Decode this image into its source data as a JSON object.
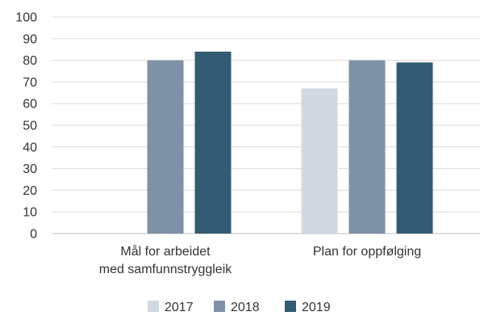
{
  "chart_data": {
    "type": "bar",
    "categories": [
      [
        "Mål for arbeidet",
        "med samfunnstryggleik"
      ],
      [
        "Plan for oppfølging"
      ]
    ],
    "series": [
      {
        "name": "2017",
        "color": "#d1d8e2",
        "values": [
          null,
          67
        ]
      },
      {
        "name": "2018",
        "color": "#7e91a7",
        "values": [
          80,
          80
        ]
      },
      {
        "name": "2019",
        "color": "#335b73",
        "values": [
          84,
          79
        ]
      }
    ],
    "ylim": [
      0,
      100
    ],
    "yticks": [
      0,
      10,
      20,
      30,
      40,
      50,
      60,
      70,
      80,
      90,
      100
    ],
    "grid": true,
    "legend_position": "bottom-center",
    "title": "",
    "xlabel": "",
    "ylabel": ""
  }
}
